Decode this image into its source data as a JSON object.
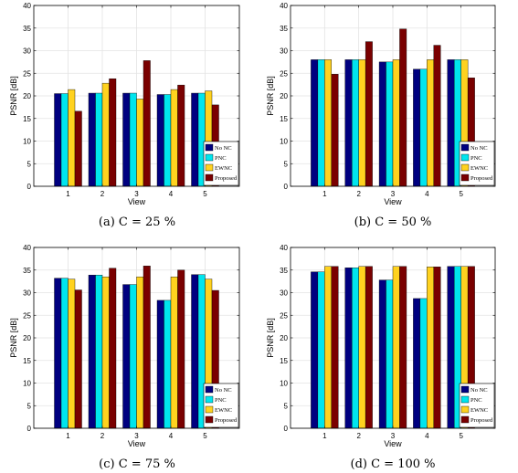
{
  "colors": {
    "No NC": "#000080",
    "PNC": "#00e5ee",
    "EWNC": "#ffd21f",
    "Proposed": "#7a0000"
  },
  "chart_data": [
    {
      "type": "bar",
      "caption": "(a)  C = 25 %",
      "xlabel": "View",
      "ylabel": "PSNR [dB]",
      "ylim": [
        0,
        40
      ],
      "yticks": [
        0,
        5,
        10,
        15,
        20,
        25,
        30,
        35,
        40
      ],
      "grid": true,
      "legend_position": "bottom-right",
      "categories": [
        "1",
        "2",
        "3",
        "4",
        "5"
      ],
      "series": [
        {
          "name": "No NC",
          "values": [
            20.5,
            20.6,
            20.6,
            20.3,
            20.6
          ]
        },
        {
          "name": "PNC",
          "values": [
            20.5,
            20.6,
            20.6,
            20.3,
            20.6
          ]
        },
        {
          "name": "EWNC",
          "values": [
            21.4,
            22.8,
            19.3,
            21.4,
            21.1
          ]
        },
        {
          "name": "Proposed",
          "values": [
            16.6,
            23.8,
            27.8,
            22.4,
            18.0
          ]
        }
      ]
    },
    {
      "type": "bar",
      "caption": "(b)  C = 50 %",
      "xlabel": "View",
      "ylabel": "PSNR [dB]",
      "ylim": [
        0,
        40
      ],
      "yticks": [
        0,
        5,
        10,
        15,
        20,
        25,
        30,
        35,
        40
      ],
      "grid": true,
      "legend_position": "bottom-right",
      "categories": [
        "1",
        "2",
        "3",
        "4",
        "5"
      ],
      "series": [
        {
          "name": "No NC",
          "values": [
            28.0,
            28.0,
            27.5,
            25.9,
            28.0
          ]
        },
        {
          "name": "PNC",
          "values": [
            28.0,
            28.0,
            27.5,
            25.9,
            28.0
          ]
        },
        {
          "name": "EWNC",
          "values": [
            28.0,
            28.0,
            28.0,
            28.0,
            28.0
          ]
        },
        {
          "name": "Proposed",
          "values": [
            24.8,
            32.0,
            34.8,
            31.2,
            24.0
          ]
        }
      ]
    },
    {
      "type": "bar",
      "caption": "(c)  C = 75 %",
      "xlabel": "View",
      "ylabel": "PSNR [dB]",
      "ylim": [
        0,
        40
      ],
      "yticks": [
        0,
        5,
        10,
        15,
        20,
        25,
        30,
        35,
        40
      ],
      "grid": true,
      "legend_position": "bottom-right",
      "categories": [
        "1",
        "2",
        "3",
        "4",
        "5"
      ],
      "series": [
        {
          "name": "No NC",
          "values": [
            33.2,
            33.9,
            31.8,
            28.3,
            34.0
          ]
        },
        {
          "name": "PNC",
          "values": [
            33.2,
            33.9,
            31.8,
            28.3,
            34.0
          ]
        },
        {
          "name": "EWNC",
          "values": [
            33.0,
            33.5,
            33.5,
            33.5,
            33.0
          ]
        },
        {
          "name": "Proposed",
          "values": [
            30.6,
            35.4,
            35.9,
            35.0,
            30.5
          ]
        }
      ]
    },
    {
      "type": "bar",
      "caption": "(d)  C = 100 %",
      "xlabel": "View",
      "ylabel": "PSNR [dB]",
      "ylim": [
        0,
        40
      ],
      "yticks": [
        0,
        5,
        10,
        15,
        20,
        25,
        30,
        35,
        40
      ],
      "grid": true,
      "legend_position": "bottom-right",
      "categories": [
        "1",
        "2",
        "3",
        "4",
        "5"
      ],
      "series": [
        {
          "name": "No NC",
          "values": [
            34.6,
            35.5,
            32.8,
            28.7,
            35.8
          ]
        },
        {
          "name": "PNC",
          "values": [
            34.6,
            35.5,
            32.8,
            28.7,
            35.8
          ]
        },
        {
          "name": "EWNC",
          "values": [
            35.8,
            35.8,
            35.8,
            35.7,
            35.8
          ]
        },
        {
          "name": "Proposed",
          "values": [
            35.8,
            35.8,
            35.8,
            35.7,
            35.8
          ]
        }
      ]
    }
  ]
}
